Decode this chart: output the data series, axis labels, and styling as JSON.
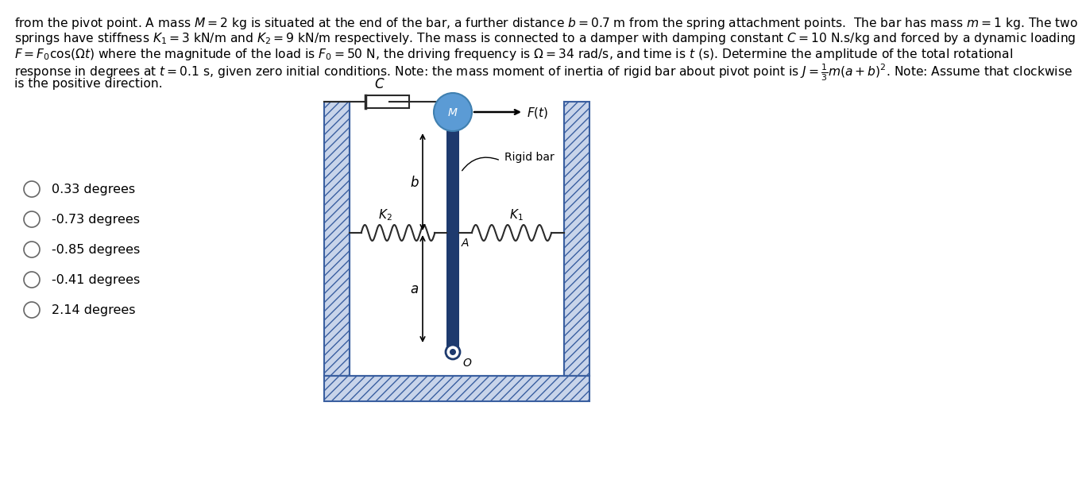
{
  "title_lines": [
    "from the pivot point. A mass $M = 2$ kg is situated at the end of the bar, a further distance $b = 0.7$ m from the spring attachment points.  The bar has mass $m = 1$ kg. The two",
    "springs have stiffness $K_1 = 3$ kN/m and $K_2 = 9$ kN/m respectively. The mass is connected to a damper with damping constant $C = 10$ N.s/kg and forced by a dynamic loading",
    "$F = F_0 \\cos(\\Omega t)$ where the magnitude of the load is $F_0 = 50$ N, the driving frequency is $\\Omega = 34$ rad/s, and time is $t$ (s). Determine the amplitude of the total rotational",
    "response in degrees at $t = 0.1$ s, given zero initial conditions. Note: the mass moment of inertia of rigid bar about pivot point is $J = \\frac{1}{3}m(a+b)^2$. Note: Assume that clockwise",
    "is the positive direction."
  ],
  "choices": [
    "0.33 degrees",
    "-0.73 degrees",
    "-0.85 degrees",
    "-0.41 degrees",
    "2.14 degrees"
  ],
  "bg_color": "#ffffff",
  "wall_hatch_color": "#3a5fa0",
  "wall_face_color": "#c8d4ea",
  "bar_color": "#1e3a6e",
  "mass_color": "#5b9bd5",
  "spring_color": "#2a2a2a",
  "damper_color": "#2a2a2a",
  "text_color": "#000000",
  "title_fontsize": 11.2,
  "choice_fontsize": 11.5,
  "label_fontsize": 11
}
